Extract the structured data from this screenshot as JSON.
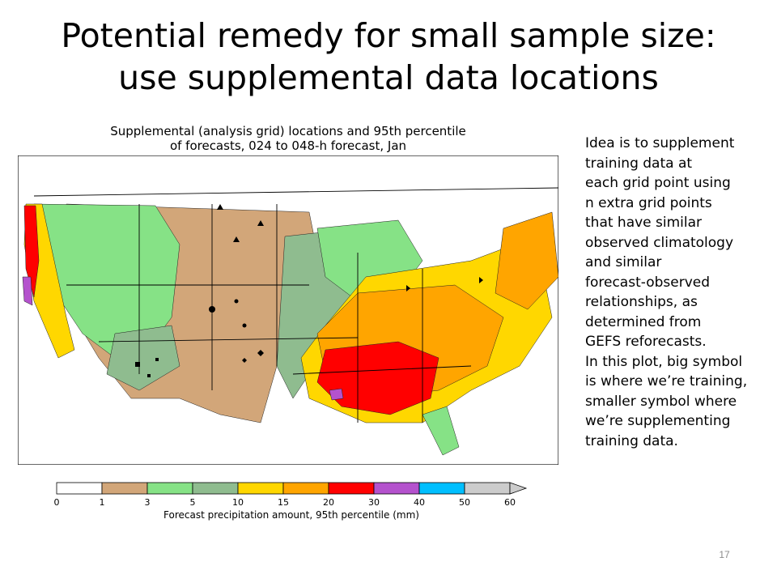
{
  "slide": {
    "title_line1": "Potential remedy for small sample size:",
    "title_line2": "use supplemental data locations",
    "page_number": "17"
  },
  "map": {
    "title_line1": "Supplemental (analysis grid) locations and 95th percentile",
    "title_line2": "of forecasts, 024 to 048-h forecast, Jan"
  },
  "colorbar": {
    "label": "Forecast precipitation amount, 95th percentile (mm)",
    "ticks": [
      "0",
      "1",
      "3",
      "5",
      "10",
      "15",
      "20",
      "30",
      "40",
      "50",
      "60"
    ],
    "colors": [
      "#ffffff",
      "#d2a679",
      "#86e286",
      "#8fbc8f",
      "#ffd700",
      "#ffa500",
      "#ff0000",
      "#b452cd",
      "#00bfff",
      "#cccccc"
    ]
  },
  "description": {
    "lines": [
      "Idea is to supplement",
      "training data at",
      "each grid point using",
      "n extra grid points",
      "that have similar",
      "observed climatology",
      "and similar",
      "forecast-observed",
      "relationships, as",
      "determined from",
      "GEFS reforecasts.",
      "In this plot, big symbol",
      "is where we’re training,",
      "smaller symbol where",
      "we’re supplementing",
      "training data."
    ]
  }
}
